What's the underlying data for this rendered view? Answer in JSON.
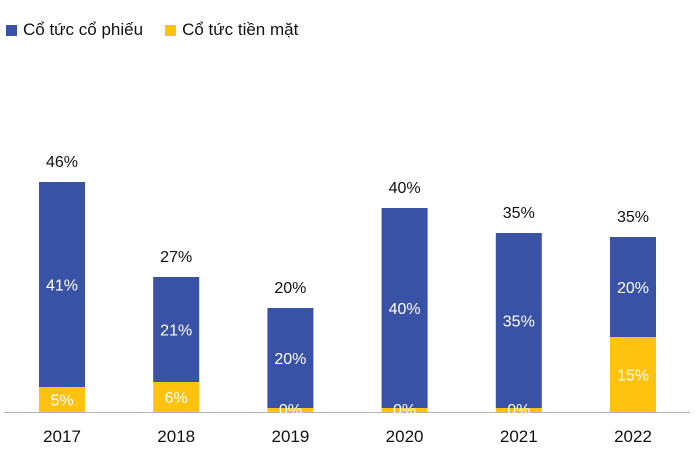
{
  "chart_data": {
    "type": "bar",
    "stacked": true,
    "categories": [
      "2017",
      "2018",
      "2019",
      "2020",
      "2021",
      "2022"
    ],
    "series": [
      {
        "name": "Cổ tức cổ phiếu",
        "color": "#3952A6",
        "values": [
          41,
          21,
          20,
          40,
          35,
          20
        ],
        "labels": [
          "41%",
          "21%",
          "20%",
          "40%",
          "35%",
          "20%"
        ]
      },
      {
        "name": "Cổ tức tiền mặt",
        "color": "#FFC20E",
        "values": [
          5,
          6,
          0,
          0,
          0,
          15
        ],
        "labels": [
          "5%",
          "6%",
          "0%",
          "0%",
          "0%",
          "15%"
        ]
      }
    ],
    "totals": [
      "46%",
      "27%",
      "20%",
      "40%",
      "35%",
      "35%"
    ],
    "ylim": [
      0,
      46
    ],
    "legend": "top-left",
    "grid": false
  }
}
